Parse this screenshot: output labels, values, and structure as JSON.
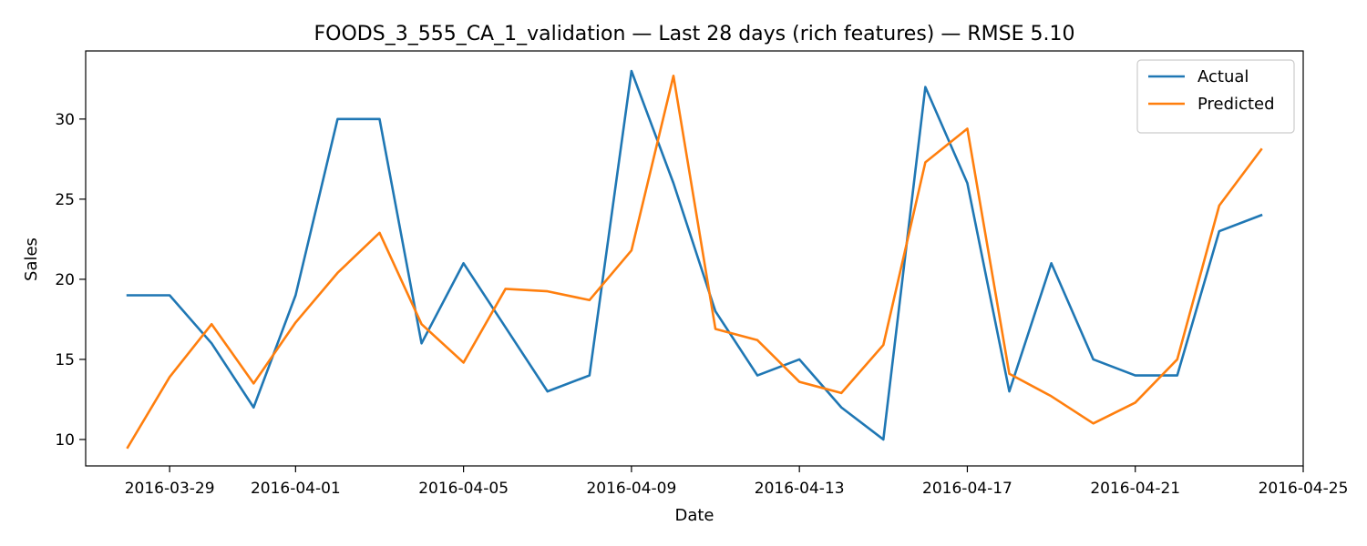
{
  "chart_data": {
    "type": "line",
    "title": "FOODS_3_555_CA_1_validation — Last 28 days (rich features) — RMSE 5.10",
    "xlabel": "Date",
    "ylabel": "Sales",
    "x": [
      "2016-03-28",
      "2016-03-29",
      "2016-03-30",
      "2016-03-31",
      "2016-04-01",
      "2016-04-02",
      "2016-04-03",
      "2016-04-04",
      "2016-04-05",
      "2016-04-06",
      "2016-04-07",
      "2016-04-08",
      "2016-04-09",
      "2016-04-10",
      "2016-04-11",
      "2016-04-12",
      "2016-04-13",
      "2016-04-14",
      "2016-04-15",
      "2016-04-16",
      "2016-04-17",
      "2016-04-18",
      "2016-04-19",
      "2016-04-20",
      "2016-04-21",
      "2016-04-22",
      "2016-04-23",
      "2016-04-24"
    ],
    "x_ticks": [
      "2016-03-29",
      "2016-04-01",
      "2016-04-05",
      "2016-04-09",
      "2016-04-13",
      "2016-04-17",
      "2016-04-21",
      "2016-04-25"
    ],
    "xlim": [
      "2016-03-27",
      "2016-04-25"
    ],
    "y_ticks": [
      10,
      15,
      20,
      25,
      30
    ],
    "ylim": [
      8.35,
      34.25
    ],
    "series": [
      {
        "name": "Actual",
        "color": "#1f77b4",
        "values": [
          19,
          19,
          16,
          12,
          19,
          30,
          30,
          16,
          21,
          17,
          13,
          14,
          33,
          26,
          18,
          14,
          15,
          12,
          10,
          32,
          26,
          13,
          21,
          15,
          14,
          14,
          23,
          24
        ]
      },
      {
        "name": "Predicted",
        "color": "#ff7f0e",
        "values": [
          9.5,
          13.9,
          17.2,
          13.5,
          17.3,
          20.4,
          22.9,
          17.2,
          14.8,
          19.4,
          19.25,
          18.7,
          21.8,
          32.7,
          16.9,
          16.2,
          13.6,
          12.9,
          15.9,
          27.3,
          29.4,
          14.1,
          12.7,
          11.0,
          12.3,
          15.0,
          24.6,
          28.1
        ]
      }
    ],
    "legend": "top-right",
    "grid": false
  }
}
